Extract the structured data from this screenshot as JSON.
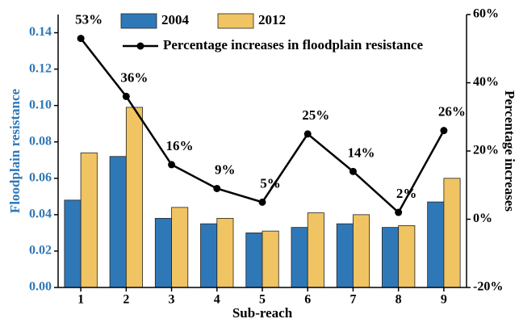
{
  "chart_data": {
    "type": "bar_line",
    "x_label": "Sub-reach",
    "y_label": "Floodplain resistance",
    "y2_label": "Percentage increases",
    "categories": [
      "1",
      "2",
      "3",
      "4",
      "5",
      "6",
      "7",
      "8",
      "9"
    ],
    "series": [
      {
        "name": "2004",
        "type": "bar",
        "color": "#2f78b8",
        "values": [
          0.048,
          0.072,
          0.038,
          0.035,
          0.03,
          0.033,
          0.035,
          0.033,
          0.047
        ]
      },
      {
        "name": "2012",
        "type": "bar",
        "color": "#f0c462",
        "values": [
          0.074,
          0.099,
          0.044,
          0.038,
          0.031,
          0.041,
          0.04,
          0.034,
          0.06
        ]
      },
      {
        "name": "Percentage increases in floodplain resistance",
        "type": "line",
        "axis": "y2",
        "color": "#000000",
        "values": [
          53,
          36,
          16,
          9,
          5,
          25,
          14,
          2,
          26
        ],
        "value_labels": [
          "53%",
          "36%",
          "16%",
          "9%",
          "5%",
          "25%",
          "14%",
          "2%",
          "26%"
        ]
      }
    ],
    "ylim": [
      0,
      0.15
    ],
    "yticks": [
      {
        "value": 0,
        "label": "0.00"
      },
      {
        "value": 0.02,
        "label": "0.02"
      },
      {
        "value": 0.04,
        "label": "0.04"
      },
      {
        "value": 0.06,
        "label": "0.06"
      },
      {
        "value": 0.08,
        "label": "0.08"
      },
      {
        "value": 0.1,
        "label": "0.10"
      },
      {
        "value": 0.12,
        "label": "0.12"
      },
      {
        "value": 0.14,
        "label": "0.14"
      }
    ],
    "y2lim": [
      -20,
      60
    ],
    "y2ticks": [
      {
        "value": -20,
        "label": "-20%"
      },
      {
        "value": 0,
        "label": "0%"
      },
      {
        "value": 20,
        "label": "20%"
      },
      {
        "value": 40,
        "label": "40%"
      },
      {
        "value": 60,
        "label": "60%"
      }
    ],
    "y_label_color": "#2f78b8"
  }
}
